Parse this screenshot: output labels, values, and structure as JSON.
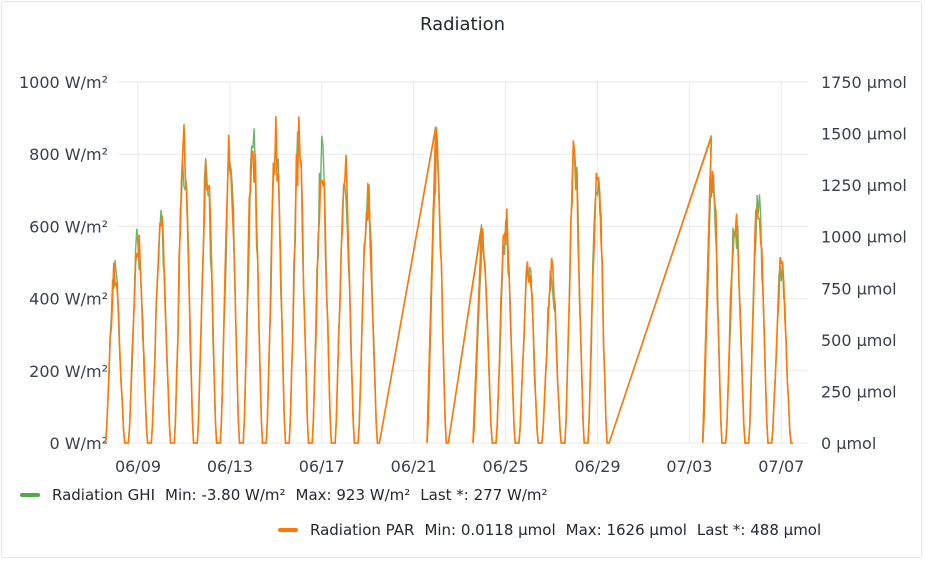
{
  "panel": {
    "title": "Radiation"
  },
  "colors": {
    "ghi": "#56a64b",
    "par": "#ff780a",
    "grid": "#e9eaec"
  },
  "chart_data": {
    "type": "line",
    "title": "Radiation",
    "x_ticks": [
      "06/09",
      "06/13",
      "06/17",
      "06/21",
      "06/25",
      "06/29",
      "07/03",
      "07/07"
    ],
    "y_left": {
      "unit": "W/m²",
      "min": 0,
      "max": 1000,
      "ticks": [
        "0 W/m²",
        "200 W/m²",
        "400 W/m²",
        "600 W/m²",
        "800 W/m²",
        "1000 W/m²"
      ]
    },
    "y_right": {
      "unit": "µmol",
      "min": 0,
      "max": 1750,
      "ticks": [
        "0 µmol",
        "250 µmol",
        "500 µmol",
        "750 µmol",
        "1000 µmol",
        "1250 µmol",
        "1500 µmol",
        "1750 µmol"
      ]
    },
    "grid": true,
    "legend_position": "bottom",
    "series": [
      {
        "name": "Radiation GHI",
        "axis": "left",
        "unit": "W/m²",
        "stats": {
          "min": "Min: -3.80 W/m²",
          "max": "Max: 923 W/m²",
          "last": "Last *: 277 W/m²"
        }
      },
      {
        "name": "Radiation PAR",
        "axis": "right",
        "unit": "µmol",
        "stats": {
          "min": "Min: 0.0118 µmol",
          "max": "Max: 1626 µmol",
          "last": "Last *: 488 µmol"
        }
      }
    ],
    "date_range": [
      "06/08",
      "07/08"
    ],
    "daily_peaks_ghi": [
      [
        "06/08",
        525
      ],
      [
        "06/09",
        630
      ],
      [
        "06/10",
        690
      ],
      [
        "06/11",
        900
      ],
      [
        "06/12",
        860
      ],
      [
        "06/13",
        885
      ],
      [
        "06/14",
        920
      ],
      [
        "06/15",
        910
      ],
      [
        "06/16",
        910
      ],
      [
        "06/17",
        870
      ],
      [
        "06/18",
        830
      ],
      [
        "06/19",
        765
      ],
      [
        "06/22",
        890
      ],
      [
        "06/24",
        615
      ],
      [
        "06/25",
        680
      ],
      [
        "06/26",
        555
      ],
      [
        "06/27",
        515
      ],
      [
        "06/28",
        890
      ],
      [
        "06/29",
        870
      ],
      [
        "07/04",
        865
      ],
      [
        "07/05",
        700
      ],
      [
        "07/06",
        770
      ],
      [
        "07/07",
        545
      ]
    ]
  }
}
